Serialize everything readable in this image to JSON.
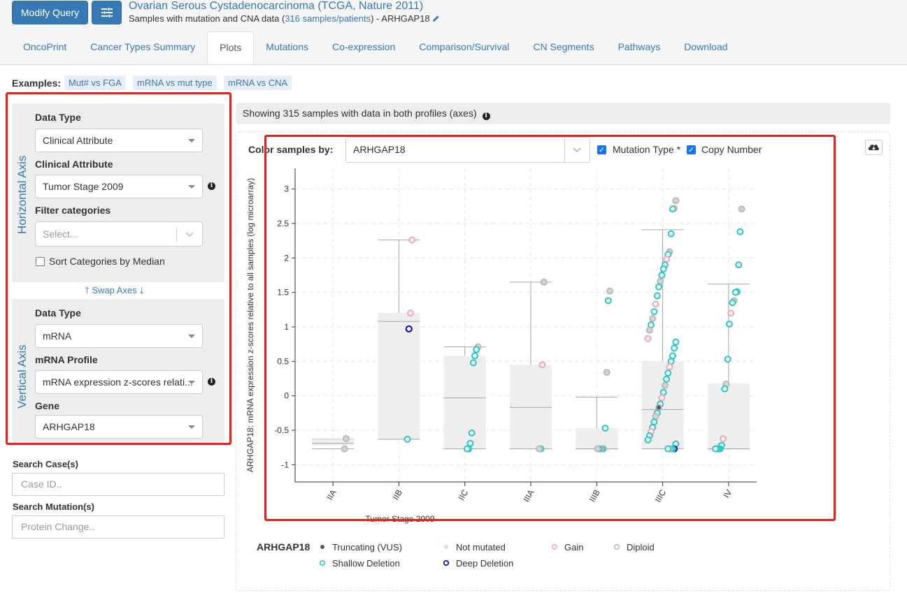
{
  "header": {
    "modify_query_label": "Modify Query",
    "study_title": "Ovarian Serous Cystadenocarcinoma (TCGA, Nature 2011)",
    "study_sub_prefix": "Samples with mutation and CNA data (",
    "study_sub_link": "316 samples/patients",
    "study_sub_suffix": ")  - ARHGAP18"
  },
  "tabs": [
    {
      "label": "OncoPrint"
    },
    {
      "label": "Cancer Types Summary"
    },
    {
      "label": "Plots",
      "active": true
    },
    {
      "label": "Mutations"
    },
    {
      "label": "Co-expression"
    },
    {
      "label": "Comparison/Survival"
    },
    {
      "label": "CN Segments"
    },
    {
      "label": "Pathways"
    },
    {
      "label": "Download"
    }
  ],
  "examples": {
    "label": "Examples:",
    "chips": [
      "Mut# vs FGA",
      "mRNA vs mut type",
      "mRNA vs CNA"
    ]
  },
  "horizontal_axis": {
    "section_label": "Horizontal Axis",
    "data_type_label": "Data Type",
    "data_type_value": "Clinical Attribute",
    "clinical_attribute_label": "Clinical Attribute",
    "clinical_attribute_value": "Tumor Stage 2009",
    "filter_label": "Filter categories",
    "filter_placeholder": "Select...",
    "sort_label": "Sort Categories by Median"
  },
  "swap_axes_label": "Swap Axes",
  "vertical_axis": {
    "section_label": "Vertical Axis",
    "data_type_label": "Data Type",
    "data_type_value": "mRNA",
    "profile_label": "mRNA Profile",
    "profile_value": "mRNA expression z-scores relati...",
    "gene_label": "Gene",
    "gene_value": "ARHGAP18"
  },
  "search": {
    "case_label": "Search Case(s)",
    "case_placeholder": "Case ID..",
    "mutation_label": "Search Mutation(s)",
    "mutation_placeholder": "Protein Change.."
  },
  "banner_text": "Showing 315 samples with data in both profiles (axes)",
  "color_by": {
    "label": "Color samples by:",
    "value": "ARHGAP18",
    "mutation_type_label": "Mutation Type *",
    "copy_number_label": "Copy Number"
  },
  "colors": {
    "shallow_deletion": "#2ac7c7",
    "gain": "#f1a7b8",
    "diploid": "#b9b9b9",
    "deep_deletion": "#0000c8",
    "truncating": "#555a66",
    "not_mutated": "#c5e3f2",
    "box_fill": "#eeeeee",
    "accent": "#3679b5",
    "highlight": "#e8211c"
  },
  "chart_data": {
    "type": "box-scatter",
    "xlabel": "Tumor Stage 2009",
    "ylabel": "ARHGAP18: mRNA expression z-scores relative to all samples (log microarray)",
    "categories": [
      "IIA",
      "IIB",
      "IIC",
      "IIIA",
      "IIIB",
      "IIIC",
      "IV"
    ],
    "yticks": [
      -1,
      -0.5,
      0,
      0.5,
      1,
      1.5,
      2,
      2.5,
      3
    ],
    "ylim": [
      -1.25,
      3.3
    ],
    "grid": true,
    "boxes": [
      {
        "category": "IIA",
        "min": -0.77,
        "q1": -0.72,
        "median": -0.69,
        "q3": -0.63,
        "max": -0.63
      },
      {
        "category": "IIB",
        "min": -0.63,
        "q1": -0.63,
        "median": 1.08,
        "q3": 1.2,
        "max": 2.26
      },
      {
        "category": "IIC",
        "min": -0.77,
        "q1": -0.77,
        "median": -0.03,
        "q3": 0.58,
        "max": 0.71
      },
      {
        "category": "IIIA",
        "min": -0.77,
        "q1": -0.77,
        "median": -0.17,
        "q3": 0.45,
        "max": 1.65
      },
      {
        "category": "IIIB",
        "min": -0.77,
        "q1": -0.77,
        "median": -0.77,
        "q3": -0.47,
        "max": -0.02
      },
      {
        "category": "IIIC",
        "min": -0.77,
        "q1": -0.77,
        "median": -0.2,
        "q3": 0.5,
        "max": 2.41
      },
      {
        "category": "IV",
        "min": -0.77,
        "q1": -0.77,
        "median": -0.77,
        "q3": 0.18,
        "max": 1.62
      }
    ],
    "points": [
      {
        "cat": "IIA",
        "y": -0.62,
        "t": "diploid"
      },
      {
        "cat": "IIA",
        "y": -0.77,
        "t": "diploid"
      },
      {
        "cat": "IIB",
        "y": 2.26,
        "t": "gain"
      },
      {
        "cat": "IIB",
        "y": 1.2,
        "t": "gain"
      },
      {
        "cat": "IIB",
        "y": 0.97,
        "t": "deep_deletion"
      },
      {
        "cat": "IIB",
        "y": -0.63,
        "t": "shallow_deletion"
      },
      {
        "cat": "IIC",
        "y": 0.71,
        "t": "diploid"
      },
      {
        "cat": "IIC",
        "y": 0.67,
        "t": "shallow_deletion"
      },
      {
        "cat": "IIC",
        "y": 0.58,
        "t": "shallow_deletion"
      },
      {
        "cat": "IIC",
        "y": 0.48,
        "t": "shallow_deletion"
      },
      {
        "cat": "IIC",
        "y": -0.54,
        "t": "shallow_deletion"
      },
      {
        "cat": "IIC",
        "y": -0.69,
        "t": "shallow_deletion"
      },
      {
        "cat": "IIC",
        "y": -0.77,
        "t": "shallow_deletion"
      },
      {
        "cat": "IIC",
        "y": -0.77,
        "t": "shallow_deletion"
      },
      {
        "cat": "IIIA",
        "y": 1.65,
        "t": "diploid"
      },
      {
        "cat": "IIIA",
        "y": 0.45,
        "t": "gain"
      },
      {
        "cat": "IIIA",
        "y": -0.77,
        "t": "shallow_deletion"
      },
      {
        "cat": "IIIA",
        "y": -0.77,
        "t": "diploid"
      },
      {
        "cat": "IIIB",
        "y": 1.52,
        "t": "diploid"
      },
      {
        "cat": "IIIB",
        "y": 1.38,
        "t": "shallow_deletion"
      },
      {
        "cat": "IIIB",
        "y": 0.34,
        "t": "diploid"
      },
      {
        "cat": "IIIB",
        "y": -0.47,
        "t": "shallow_deletion"
      },
      {
        "cat": "IIIB",
        "y": -0.77,
        "t": "diploid"
      },
      {
        "cat": "IIIB",
        "y": -0.77,
        "t": "shallow_deletion"
      },
      {
        "cat": "IIIB",
        "y": -0.77,
        "t": "diploid"
      },
      {
        "cat": "IIIB",
        "y": -0.77,
        "t": "shallow_deletion"
      },
      {
        "cat": "IIIB",
        "y": -0.77,
        "t": "diploid"
      },
      {
        "cat": "IIIC",
        "y": 2.83,
        "t": "diploid"
      },
      {
        "cat": "IIIC",
        "y": 2.72,
        "t": "gain"
      },
      {
        "cat": "IIIC",
        "y": 2.71,
        "t": "shallow_deletion"
      },
      {
        "cat": "IIIC",
        "y": 2.35,
        "t": "shallow_deletion"
      },
      {
        "cat": "IIIC",
        "y": 2.09,
        "t": "diploid"
      },
      {
        "cat": "IIIC",
        "y": 2.05,
        "t": "shallow_deletion"
      },
      {
        "cat": "IIIC",
        "y": 1.98,
        "t": "gain"
      },
      {
        "cat": "IIIC",
        "y": 1.9,
        "t": "shallow_deletion"
      },
      {
        "cat": "IIIC",
        "y": 1.84,
        "t": "shallow_deletion"
      },
      {
        "cat": "IIIC",
        "y": 1.75,
        "t": "shallow_deletion"
      },
      {
        "cat": "IIIC",
        "y": 1.66,
        "t": "diploid"
      },
      {
        "cat": "IIIC",
        "y": 1.58,
        "t": "shallow_deletion"
      },
      {
        "cat": "IIIC",
        "y": 1.45,
        "t": "shallow_deletion"
      },
      {
        "cat": "IIIC",
        "y": 1.33,
        "t": "gain"
      },
      {
        "cat": "IIIC",
        "y": 1.22,
        "t": "shallow_deletion"
      },
      {
        "cat": "IIIC",
        "y": 1.12,
        "t": "diploid"
      },
      {
        "cat": "IIIC",
        "y": 1.03,
        "t": "shallow_deletion"
      },
      {
        "cat": "IIIC",
        "y": 0.95,
        "t": "diploid"
      },
      {
        "cat": "IIIC",
        "y": 0.83,
        "t": "gain"
      },
      {
        "cat": "IIIC",
        "y": 0.78,
        "t": "shallow_deletion"
      },
      {
        "cat": "IIIC",
        "y": 0.69,
        "t": "shallow_deletion"
      },
      {
        "cat": "IIIC",
        "y": 0.58,
        "t": "shallow_deletion"
      },
      {
        "cat": "IIIC",
        "y": 0.5,
        "t": "shallow_deletion"
      },
      {
        "cat": "IIIC",
        "y": 0.42,
        "t": "gain"
      },
      {
        "cat": "IIIC",
        "y": 0.33,
        "t": "shallow_deletion"
      },
      {
        "cat": "IIIC",
        "y": 0.24,
        "t": "shallow_deletion"
      },
      {
        "cat": "IIIC",
        "y": 0.15,
        "t": "diploid"
      },
      {
        "cat": "IIIC",
        "y": 0.05,
        "t": "shallow_deletion"
      },
      {
        "cat": "IIIC",
        "y": -0.03,
        "t": "gain"
      },
      {
        "cat": "IIIC",
        "y": -0.12,
        "t": "shallow_deletion"
      },
      {
        "cat": "IIIC",
        "y": -0.17,
        "t": "truncating"
      },
      {
        "cat": "IIIC",
        "y": -0.25,
        "t": "shallow_deletion"
      },
      {
        "cat": "IIIC",
        "y": -0.3,
        "t": "diploid"
      },
      {
        "cat": "IIIC",
        "y": -0.38,
        "t": "shallow_deletion"
      },
      {
        "cat": "IIIC",
        "y": -0.46,
        "t": "shallow_deletion"
      },
      {
        "cat": "IIIC",
        "y": -0.52,
        "t": "gain"
      },
      {
        "cat": "IIIC",
        "y": -0.58,
        "t": "shallow_deletion"
      },
      {
        "cat": "IIIC",
        "y": -0.64,
        "t": "shallow_deletion"
      },
      {
        "cat": "IIIC",
        "y": -0.7,
        "t": "shallow_deletion"
      },
      {
        "cat": "IIIC",
        "y": -0.77,
        "t": "deep_deletion"
      },
      {
        "cat": "IIIC",
        "y": -0.77,
        "t": "shallow_deletion"
      },
      {
        "cat": "IIIC",
        "y": -0.77,
        "t": "shallow_deletion"
      },
      {
        "cat": "IIIC",
        "y": -0.77,
        "t": "diploid"
      },
      {
        "cat": "IIIC",
        "y": -0.77,
        "t": "shallow_deletion"
      },
      {
        "cat": "IV",
        "y": 2.71,
        "t": "diploid"
      },
      {
        "cat": "IV",
        "y": 2.38,
        "t": "shallow_deletion"
      },
      {
        "cat": "IV",
        "y": 1.9,
        "t": "shallow_deletion"
      },
      {
        "cat": "IV",
        "y": 1.51,
        "t": "shallow_deletion"
      },
      {
        "cat": "IV",
        "y": 1.5,
        "t": "shallow_deletion"
      },
      {
        "cat": "IV",
        "y": 1.38,
        "t": "diploid"
      },
      {
        "cat": "IV",
        "y": 1.35,
        "t": "shallow_deletion"
      },
      {
        "cat": "IV",
        "y": 1.2,
        "t": "gain"
      },
      {
        "cat": "IV",
        "y": 1.04,
        "t": "shallow_deletion"
      },
      {
        "cat": "IV",
        "y": 0.53,
        "t": "shallow_deletion"
      },
      {
        "cat": "IV",
        "y": 0.17,
        "t": "diploid"
      },
      {
        "cat": "IV",
        "y": 0.1,
        "t": "shallow_deletion"
      },
      {
        "cat": "IV",
        "y": -0.62,
        "t": "gain"
      },
      {
        "cat": "IV",
        "y": -0.72,
        "t": "shallow_deletion"
      },
      {
        "cat": "IV",
        "y": -0.77,
        "t": "shallow_deletion"
      },
      {
        "cat": "IV",
        "y": -0.77,
        "t": "shallow_deletion"
      },
      {
        "cat": "IV",
        "y": -0.77,
        "t": "shallow_deletion"
      },
      {
        "cat": "IV",
        "y": -0.77,
        "t": "shallow_deletion"
      }
    ],
    "legend": {
      "title": "ARHGAP18",
      "items": [
        {
          "label": "Truncating (VUS)",
          "type": "truncating"
        },
        {
          "label": "Not mutated",
          "type": "not_mutated"
        },
        {
          "label": "Gain",
          "type": "gain"
        },
        {
          "label": "Diploid",
          "type": "diploid"
        },
        {
          "label": "Shallow Deletion",
          "type": "shallow_deletion"
        },
        {
          "label": "Deep Deletion",
          "type": "deep_deletion"
        }
      ]
    }
  }
}
